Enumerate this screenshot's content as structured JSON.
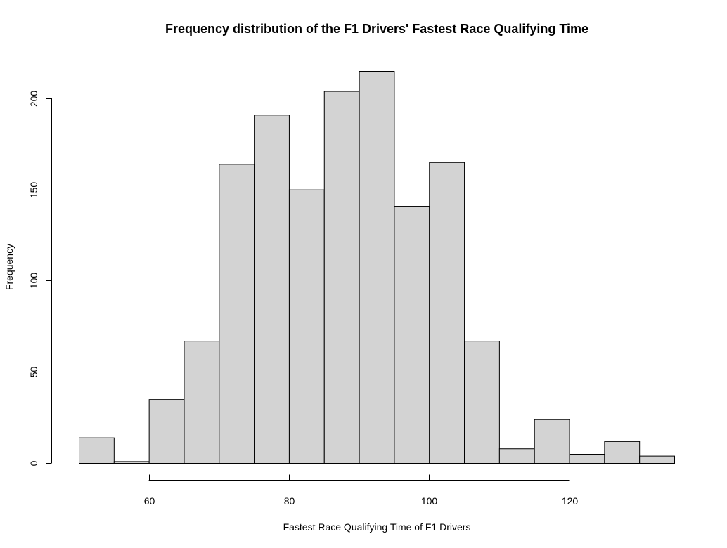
{
  "chart_data": {
    "type": "bar",
    "title": "Frequency distribution of the F1 Drivers' Fastest Race Qualifying Time",
    "xlabel": "Fastest Race Qualifying Time of F1 Drivers",
    "ylabel": "Frequency",
    "bin_edges": [
      50,
      55,
      60,
      65,
      70,
      75,
      80,
      85,
      90,
      95,
      100,
      105,
      110,
      115,
      120,
      125,
      130,
      135
    ],
    "values": [
      14,
      1,
      35,
      67,
      164,
      191,
      150,
      204,
      215,
      141,
      165,
      67,
      8,
      24,
      5,
      12,
      4
    ],
    "xlim": [
      50,
      135
    ],
    "ylim": [
      0,
      215
    ],
    "x_ticks": [
      60,
      80,
      100,
      120
    ],
    "y_ticks": [
      0,
      50,
      100,
      150,
      200
    ],
    "bar_color": "#d3d3d3",
    "grid": false,
    "legend": "none"
  }
}
